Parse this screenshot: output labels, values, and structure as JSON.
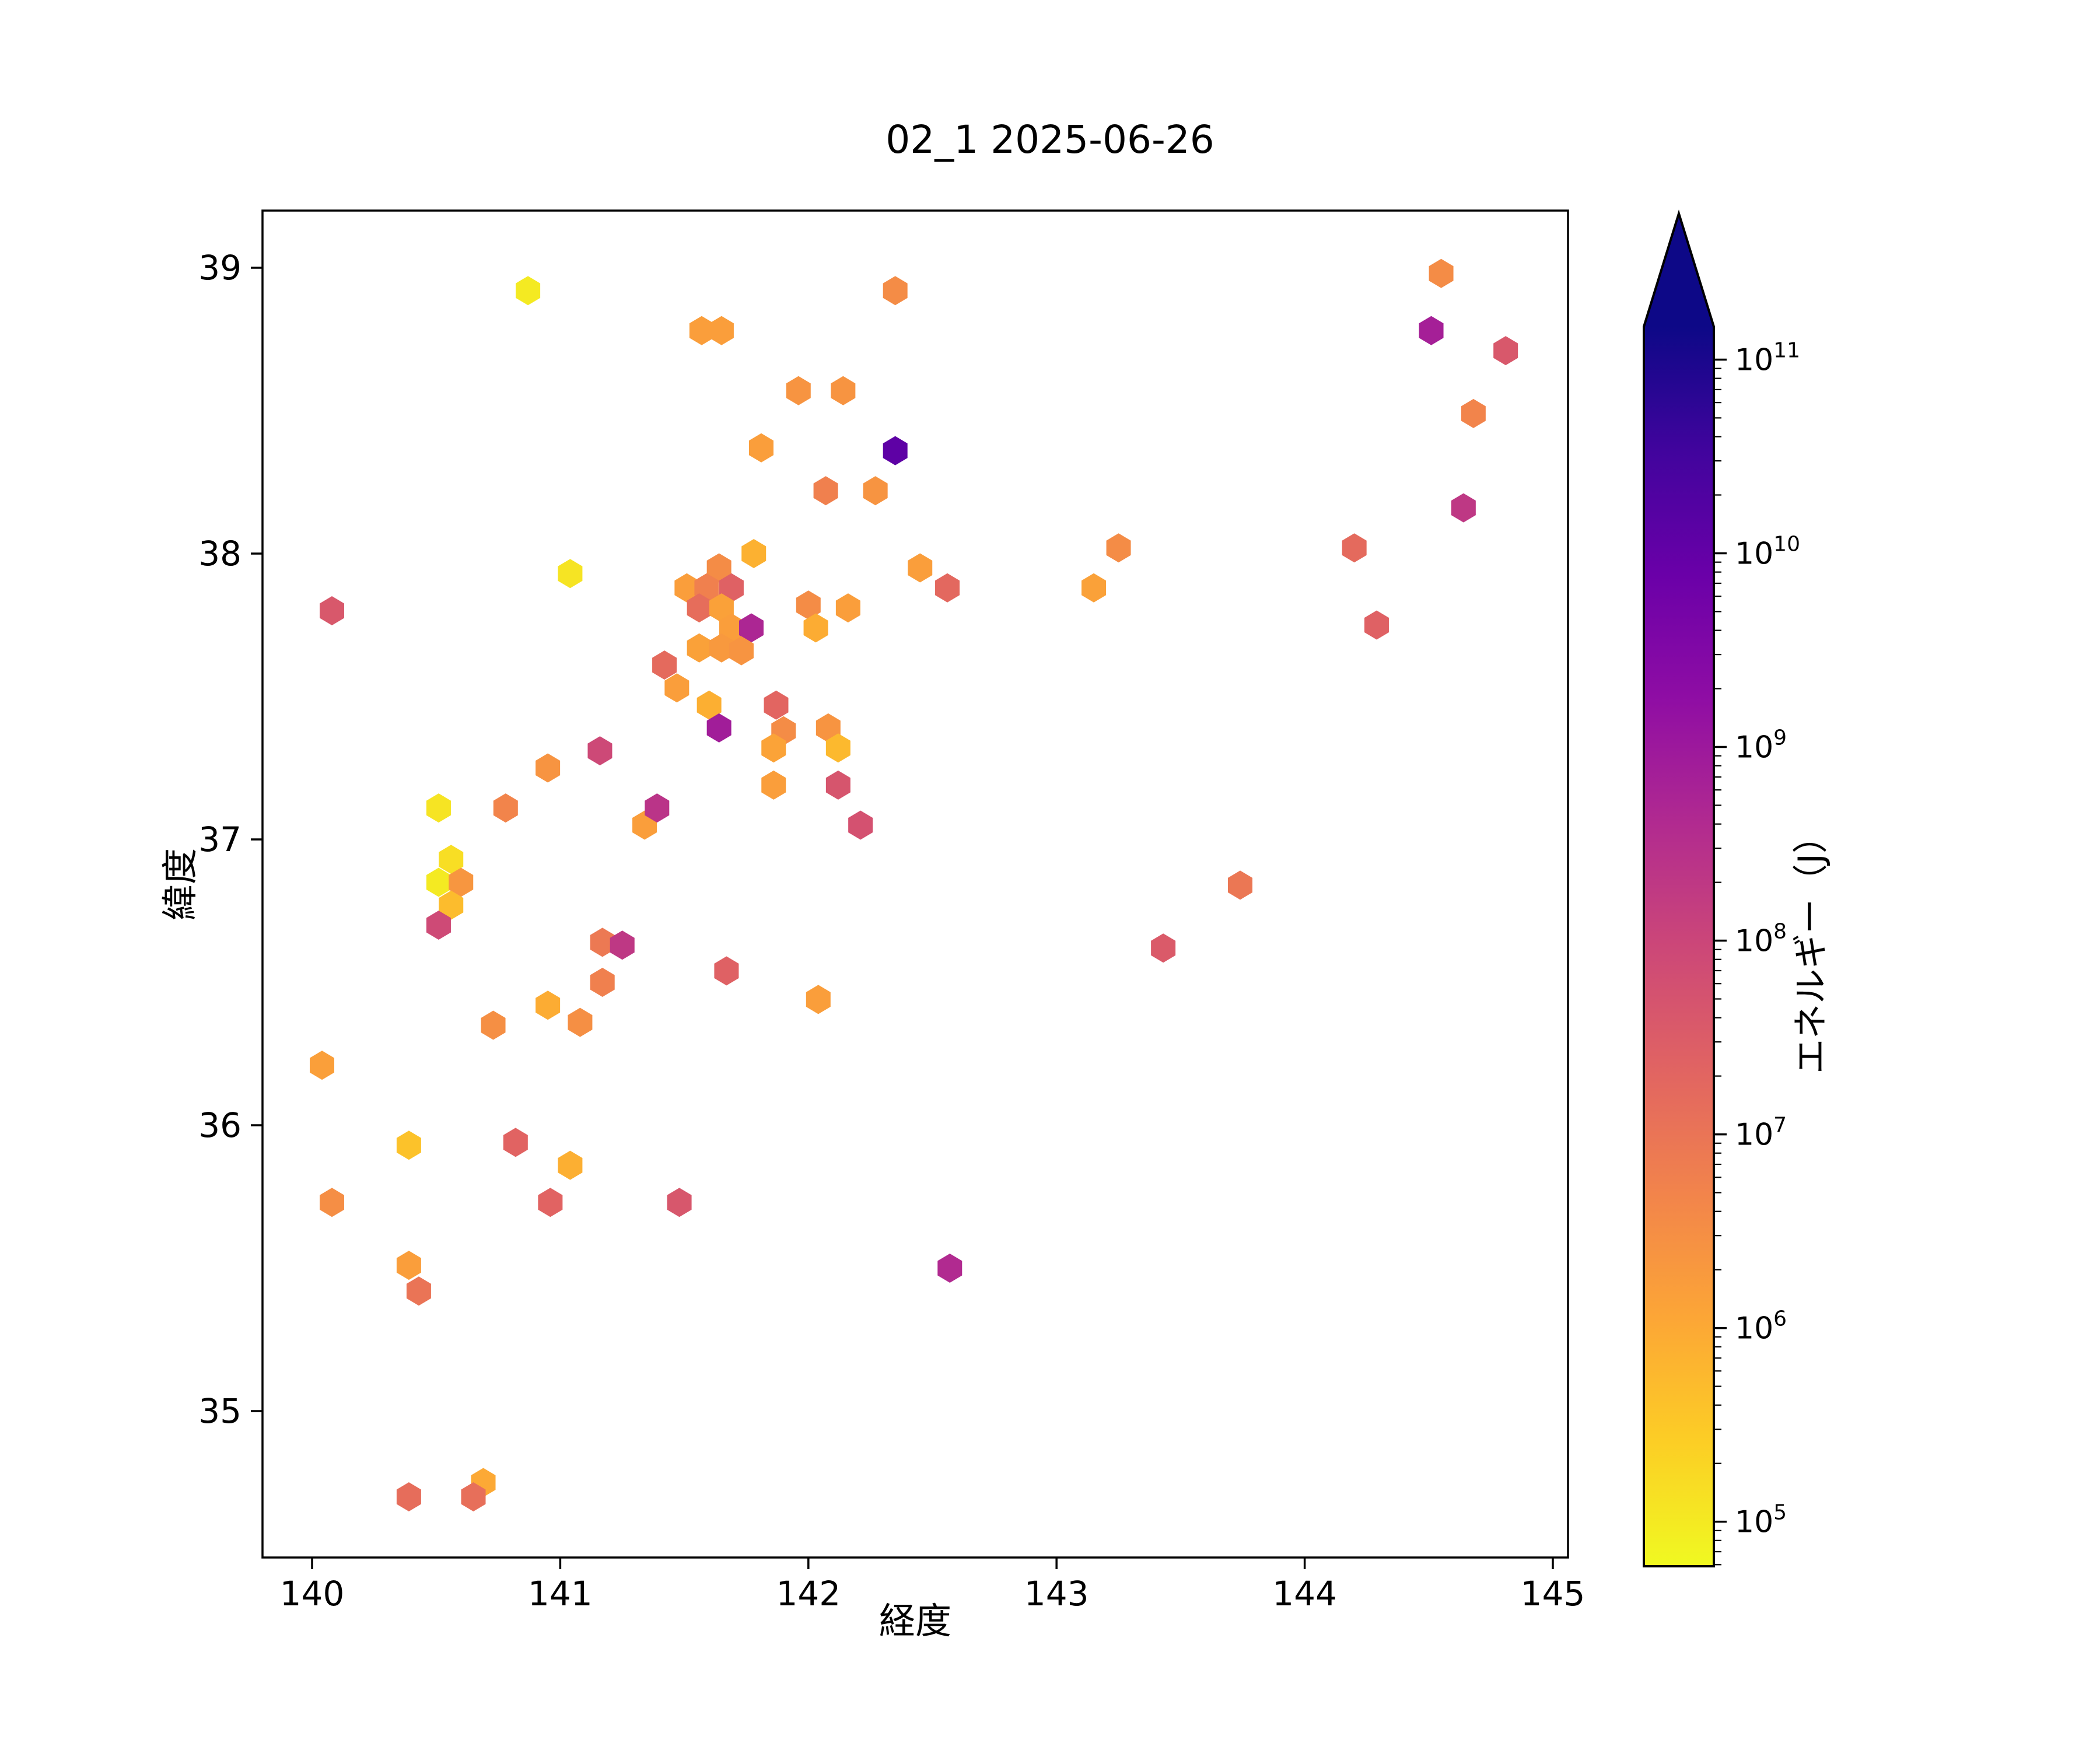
{
  "title": "02_1 2025-06-26",
  "axes": {
    "xlabel": "経度",
    "ylabel": "緯度",
    "x_ticks": [
      140,
      141,
      142,
      143,
      144,
      145
    ],
    "y_ticks": [
      35,
      36,
      37,
      38,
      39
    ],
    "xlim": [
      139.8,
      145.06
    ],
    "ylim": [
      34.49,
      39.2
    ],
    "grid": false
  },
  "colorbar": {
    "label": "エネルギー（J）",
    "tick_exponents": [
      5,
      6,
      7,
      8,
      9,
      10,
      11
    ],
    "tick_prefix": "10",
    "range_log10": [
      4.77,
      11.17
    ],
    "extend": "max",
    "colormap": "plasma_r",
    "stops_top_to_bottom": [
      "#0d0887",
      "#41049d",
      "#6a00a8",
      "#8f0da4",
      "#b12a90",
      "#cc4778",
      "#e16462",
      "#f2844b",
      "#fca636",
      "#fcce25",
      "#f0f921"
    ]
  },
  "chart_data": {
    "type": "scatter",
    "marker": "hexagon",
    "title": "02_1 2025-06-26",
    "xlabel": "経度",
    "ylabel": "緯度",
    "color_label": "エネルギー（J）",
    "color_scale": "log",
    "points": [
      {
        "lon": 140.87,
        "lat": 38.92,
        "energy": 100000.0
      },
      {
        "lon": 142.35,
        "lat": 38.92,
        "energy": 3400000.0
      },
      {
        "lon": 141.57,
        "lat": 38.78,
        "energy": 1600000.0
      },
      {
        "lon": 141.65,
        "lat": 38.78,
        "energy": 1600000.0
      },
      {
        "lon": 141.96,
        "lat": 38.57,
        "energy": 2500000.0
      },
      {
        "lon": 142.14,
        "lat": 38.57,
        "energy": 2500000.0
      },
      {
        "lon": 141.81,
        "lat": 38.37,
        "energy": 1600000.0
      },
      {
        "lon": 142.35,
        "lat": 38.36,
        "energy": 12000000000.0
      },
      {
        "lon": 142.07,
        "lat": 38.22,
        "energy": 6000000.0
      },
      {
        "lon": 142.27,
        "lat": 38.22,
        "energy": 2500000.0
      },
      {
        "lon": 141.78,
        "lat": 38.0,
        "energy": 750000.0
      },
      {
        "lon": 141.04,
        "lat": 37.93,
        "energy": 120000.0
      },
      {
        "lon": 140.08,
        "lat": 37.8,
        "energy": 40000000.0
      },
      {
        "lon": 142.45,
        "lat": 37.95,
        "energy": 1600000.0
      },
      {
        "lon": 142.56,
        "lat": 37.88,
        "energy": 18000000.0
      },
      {
        "lon": 143.25,
        "lat": 38.02,
        "energy": 3400000.0
      },
      {
        "lon": 143.15,
        "lat": 37.88,
        "energy": 1400000.0
      },
      {
        "lon": 144.55,
        "lat": 38.98,
        "energy": 3400000.0
      },
      {
        "lon": 144.51,
        "lat": 38.78,
        "energy": 700000000.0
      },
      {
        "lon": 144.81,
        "lat": 38.71,
        "energy": 40000000.0
      },
      {
        "lon": 144.68,
        "lat": 38.49,
        "energy": 5000000.0
      },
      {
        "lon": 144.64,
        "lat": 38.16,
        "energy": 200000000.0
      },
      {
        "lon": 144.2,
        "lat": 38.02,
        "energy": 16000000.0
      },
      {
        "lon": 144.29,
        "lat": 37.75,
        "energy": 25000000.0
      },
      {
        "lon": 141.64,
        "lat": 37.95,
        "energy": 3400000.0
      },
      {
        "lon": 141.51,
        "lat": 37.88,
        "energy": 1600000.0
      },
      {
        "lon": 141.59,
        "lat": 37.88,
        "energy": 6000000.0
      },
      {
        "lon": 141.69,
        "lat": 37.88,
        "energy": 25000000.0
      },
      {
        "lon": 141.56,
        "lat": 37.81,
        "energy": 14000000.0
      },
      {
        "lon": 141.65,
        "lat": 37.81,
        "energy": 1400000.0
      },
      {
        "lon": 142.0,
        "lat": 37.82,
        "energy": 3400000.0
      },
      {
        "lon": 142.16,
        "lat": 37.81,
        "energy": 1600000.0
      },
      {
        "lon": 141.69,
        "lat": 37.74,
        "energy": 1600000.0
      },
      {
        "lon": 141.77,
        "lat": 37.74,
        "energy": 500000000.0
      },
      {
        "lon": 142.03,
        "lat": 37.74,
        "energy": 900000.0
      },
      {
        "lon": 141.56,
        "lat": 37.67,
        "energy": 1400000.0
      },
      {
        "lon": 141.65,
        "lat": 37.67,
        "energy": 2000000.0
      },
      {
        "lon": 141.73,
        "lat": 37.66,
        "energy": 2400000.0
      },
      {
        "lon": 141.42,
        "lat": 37.61,
        "energy": 16000000.0
      },
      {
        "lon": 141.47,
        "lat": 37.53,
        "energy": 1600000.0
      },
      {
        "lon": 141.6,
        "lat": 37.47,
        "energy": 800000.0
      },
      {
        "lon": 141.87,
        "lat": 37.47,
        "energy": 20000000.0
      },
      {
        "lon": 141.64,
        "lat": 37.39,
        "energy": 800000000.0
      },
      {
        "lon": 141.9,
        "lat": 37.38,
        "energy": 3400000.0
      },
      {
        "lon": 142.08,
        "lat": 37.39,
        "energy": 2500000.0
      },
      {
        "lon": 141.86,
        "lat": 37.32,
        "energy": 1300000.0
      },
      {
        "lon": 142.12,
        "lat": 37.32,
        "energy": 550000.0
      },
      {
        "lon": 140.95,
        "lat": 37.25,
        "energy": 2400000.0
      },
      {
        "lon": 141.16,
        "lat": 37.31,
        "energy": 85000000.0
      },
      {
        "lon": 141.86,
        "lat": 37.19,
        "energy": 1600000.0
      },
      {
        "lon": 142.12,
        "lat": 37.19,
        "energy": 45000000.0
      },
      {
        "lon": 140.51,
        "lat": 37.11,
        "energy": 120000.0
      },
      {
        "lon": 140.78,
        "lat": 37.11,
        "energy": 5000000.0
      },
      {
        "lon": 141.34,
        "lat": 37.05,
        "energy": 1600000.0
      },
      {
        "lon": 141.39,
        "lat": 37.11,
        "energy": 250000000.0
      },
      {
        "lon": 142.21,
        "lat": 37.05,
        "energy": 55000000.0
      },
      {
        "lon": 140.56,
        "lat": 36.93,
        "energy": 150000.0
      },
      {
        "lon": 140.51,
        "lat": 36.85,
        "energy": 100000.0
      },
      {
        "lon": 140.6,
        "lat": 36.85,
        "energy": 2200000.0
      },
      {
        "lon": 140.56,
        "lat": 36.77,
        "energy": 500000.0
      },
      {
        "lon": 140.51,
        "lat": 36.7,
        "energy": 80000000.0
      },
      {
        "lon": 141.17,
        "lat": 36.64,
        "energy": 8000000.0
      },
      {
        "lon": 141.25,
        "lat": 36.63,
        "energy": 200000000.0
      },
      {
        "lon": 141.67,
        "lat": 36.54,
        "energy": 25000000.0
      },
      {
        "lon": 142.04,
        "lat": 36.44,
        "energy": 1600000.0
      },
      {
        "lon": 141.17,
        "lat": 36.5,
        "energy": 6000000.0
      },
      {
        "lon": 140.95,
        "lat": 36.42,
        "energy": 900000.0
      },
      {
        "lon": 141.08,
        "lat": 36.36,
        "energy": 3000000.0
      },
      {
        "lon": 140.73,
        "lat": 36.35,
        "energy": 3000000.0
      },
      {
        "lon": 140.04,
        "lat": 36.21,
        "energy": 1500000.0
      },
      {
        "lon": 143.43,
        "lat": 36.62,
        "energy": 35000000.0
      },
      {
        "lon": 143.74,
        "lat": 36.84,
        "energy": 9000000.0
      },
      {
        "lon": 140.39,
        "lat": 35.93,
        "energy": 400000.0
      },
      {
        "lon": 140.82,
        "lat": 35.94,
        "energy": 22000000.0
      },
      {
        "lon": 141.04,
        "lat": 35.86,
        "energy": 800000.0
      },
      {
        "lon": 140.08,
        "lat": 35.73,
        "energy": 3200000.0
      },
      {
        "lon": 140.96,
        "lat": 35.73,
        "energy": 22000000.0
      },
      {
        "lon": 141.48,
        "lat": 35.73,
        "energy": 42000000.0
      },
      {
        "lon": 140.39,
        "lat": 35.51,
        "energy": 1600000.0
      },
      {
        "lon": 140.43,
        "lat": 35.42,
        "energy": 10000000.0
      },
      {
        "lon": 142.57,
        "lat": 35.5,
        "energy": 400000000.0
      },
      {
        "lon": 140.69,
        "lat": 34.75,
        "energy": 1000000.0
      },
      {
        "lon": 140.39,
        "lat": 34.7,
        "energy": 14000000.0
      },
      {
        "lon": 140.65,
        "lat": 34.7,
        "energy": 13000000.0
      }
    ]
  }
}
